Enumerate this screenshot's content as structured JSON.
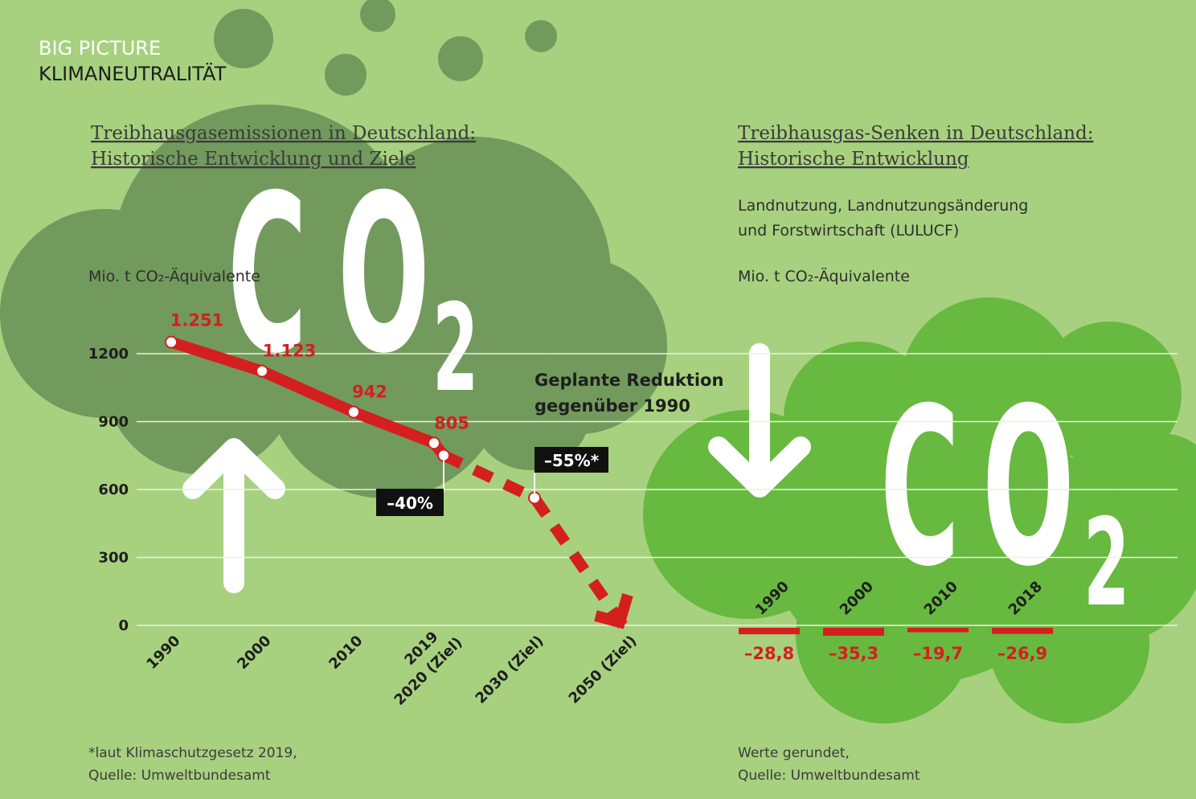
{
  "header": {
    "kicker": "BIG PICTURE",
    "title": "KLIMANEUTRALITÄT"
  },
  "chart_data": [
    {
      "type": "line",
      "title": [
        "Treibhausgasemissionen in Deutschland:",
        "Historische Entwicklung und Ziele"
      ],
      "y_label": "Mio. t CO₂-Äquivalente",
      "graphic_text": [
        "CO",
        "2"
      ],
      "categories": [
        "1990",
        "2000",
        "2010",
        "2019",
        "2020 (Ziel)",
        "2030 (Ziel)",
        "2050 (Ziel)"
      ],
      "ylim": [
        0,
        1200
      ],
      "yticks": [
        0,
        300,
        600,
        900,
        1200
      ],
      "grid": true,
      "series": [
        {
          "color": "#d41f1f",
          "line_style": "solid",
          "values": [
            1251,
            1123,
            942,
            805,
            751,
            null,
            null
          ],
          "value_labels": [
            "1.251",
            "1.123",
            "942",
            "805",
            null,
            null,
            null
          ]
        },
        {
          "color": "#d41f1f",
          "line_style": "dashed",
          "end_arrow": true,
          "values": [
            null,
            null,
            null,
            null,
            751,
            563,
            0
          ]
        }
      ],
      "annotations": [
        "Geplante Reduktion",
        "gegenüber 1990",
        "–40%",
        "–55%*"
      ],
      "footnote": [
        "*laut Klimaschutzgesetz 2019,",
        "Quelle: Umweltbundesamt"
      ]
    },
    {
      "type": "bar",
      "title": [
        "Treibhausgas-Senken in Deutschland:",
        "Historische Entwicklung"
      ],
      "subtitle": [
        "Landnutzung, Landnutzungsänderung",
        "und Forstwirtschaft (LULUCF)"
      ],
      "y_label": "Mio. t CO₂-Äquivalente",
      "graphic_text": [
        "CO",
        "2"
      ],
      "categories": [
        "1990",
        "2000",
        "2010",
        "2018"
      ],
      "values": [
        -28.8,
        -35.3,
        -19.7,
        -26.9
      ],
      "value_labels": [
        "–28,8",
        "–35,3",
        "–19,7",
        "–26,9"
      ],
      "color": "#d41f1f",
      "ylim": [
        0,
        1200
      ],
      "footnote": [
        "Werte gerundet,",
        "Quelle: Umweltbundesamt"
      ]
    }
  ]
}
